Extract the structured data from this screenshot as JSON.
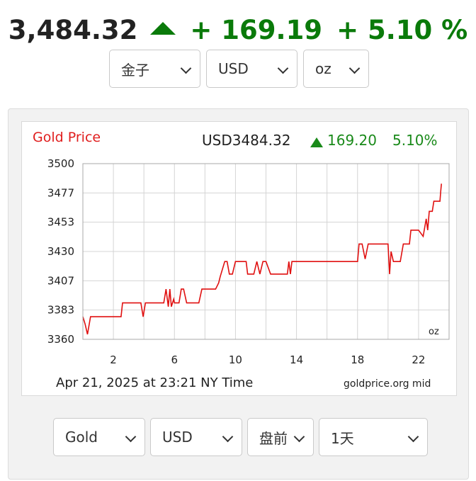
{
  "header": {
    "price": "3,484.32",
    "change": "+ 169.19",
    "percent": "+ 5.10 %",
    "selects": [
      "金子",
      "USD",
      "oz"
    ]
  },
  "chart_data": {
    "type": "line",
    "title": "Gold Price",
    "quote": {
      "currency_price": "USD3484.32",
      "change": "169.20",
      "percent": "5.10%"
    },
    "ylim": [
      3360,
      3500
    ],
    "y_ticks": [
      "3360",
      "3383",
      "3407",
      "3430",
      "3453",
      "3477",
      "3500"
    ],
    "xlim": [
      0,
      24
    ],
    "x_ticks": [
      "2",
      "6",
      "10",
      "14",
      "18",
      "22"
    ],
    "unit_label": "oz",
    "footer_left": "Apr 21, 2025 at 23:21 NY Time",
    "footer_right": "goldprice.org mid",
    "grid": true,
    "series": [
      {
        "color": "#e01010",
        "x": [
          0,
          0.15,
          0.3,
          0.5,
          1.5,
          1.8,
          2.5,
          2.6,
          3.6,
          3.8,
          3.95,
          4.1,
          4.9,
          5.3,
          5.45,
          5.6,
          5.7,
          5.8,
          5.95,
          6.0,
          6.3,
          6.45,
          6.6,
          6.8,
          7.0,
          7.2,
          7.4,
          7.6,
          7.8,
          8.2,
          8.4,
          8.7,
          8.9,
          9.0,
          9.3,
          9.45,
          9.6,
          9.8,
          10.0,
          10.5,
          10.7,
          10.8,
          11.0,
          11.2,
          11.4,
          11.6,
          11.8,
          12.0,
          12.3,
          12.5,
          13.0,
          13.4,
          13.5,
          13.6,
          13.7,
          13.8,
          14.0,
          14.5,
          15.5,
          16.5,
          17.5,
          17.8,
          18.0,
          18.1,
          18.3,
          18.5,
          18.7,
          18.8,
          19.2,
          19.5,
          19.8,
          20.0,
          20.1,
          20.2,
          20.35,
          20.5,
          20.6,
          20.8,
          21.0,
          21.1,
          21.4,
          21.5,
          21.8,
          22.0,
          22.3,
          22.5,
          22.6,
          22.7,
          22.8,
          22.9,
          23.0,
          23.2,
          23.4,
          23.45,
          23.5
        ],
        "y": [
          3378,
          3372,
          3364,
          3378,
          3378,
          3378,
          3378,
          3389,
          3389,
          3389,
          3378,
          3389,
          3389,
          3389,
          3400,
          3386,
          3400,
          3386,
          3392,
          3389,
          3389,
          3400,
          3400,
          3389,
          3389,
          3389,
          3389,
          3389,
          3400,
          3400,
          3400,
          3400,
          3405,
          3410,
          3422,
          3422,
          3412,
          3412,
          3422,
          3422,
          3422,
          3412,
          3412,
          3412,
          3422,
          3412,
          3422,
          3422,
          3412,
          3412,
          3412,
          3412,
          3422,
          3412,
          3422,
          3422,
          3422,
          3422,
          3422,
          3422,
          3422,
          3422,
          3422,
          3436,
          3436,
          3424,
          3436,
          3436,
          3436,
          3436,
          3436,
          3436,
          3412,
          3430,
          3422,
          3422,
          3422,
          3422,
          3436,
          3436,
          3436,
          3447,
          3447,
          3447,
          3442,
          3456,
          3447,
          3462,
          3462,
          3462,
          3470,
          3470,
          3470,
          3478,
          3484
        ]
      }
    ]
  }
}
